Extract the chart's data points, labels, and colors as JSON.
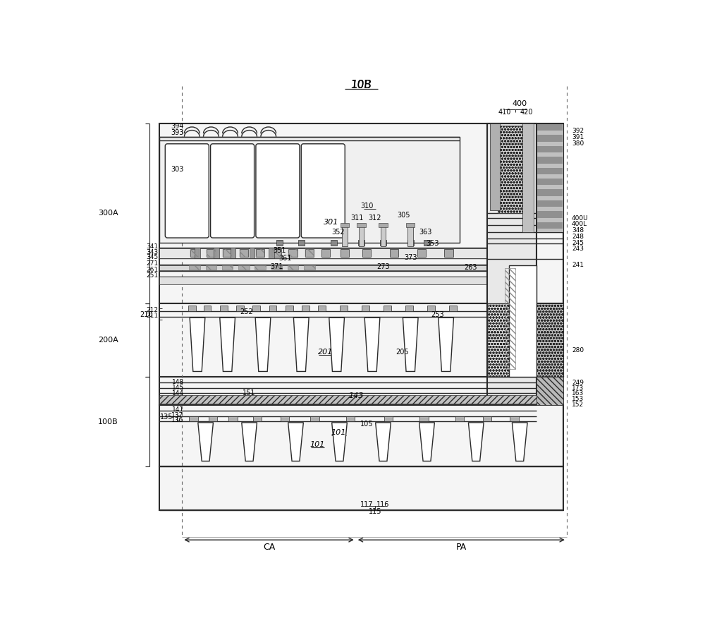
{
  "title": "10B",
  "bg_color": "#ffffff",
  "fig_width": 10.0,
  "fig_height": 8.9,
  "dpi": 100,
  "ca_label": "CA",
  "pa_label": "PA",
  "line_color": "#2a2a2a",
  "gray_light": "#e0e0e0",
  "gray_mid": "#b0b0b0",
  "gray_dark": "#808080",
  "gray_fill": "#c8c8c8",
  "white": "#ffffff",
  "dot_fill": "#d8d8d8"
}
